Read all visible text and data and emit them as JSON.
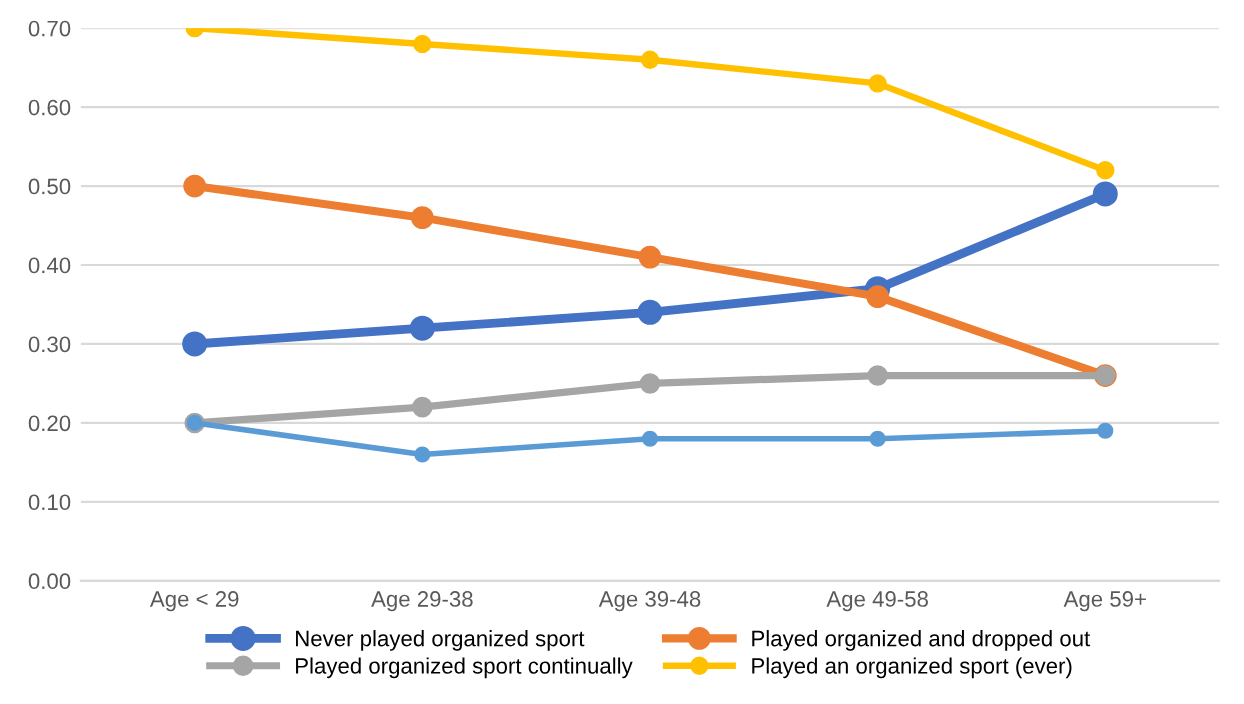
{
  "chart_data": {
    "type": "line",
    "categories": [
      "Age < 29",
      "Age 29-38",
      "Age 39-48",
      "Age 49-58",
      "Age 59+"
    ],
    "series": [
      {
        "name": "Never played organized sport",
        "color": "#4472c4",
        "values": [
          0.3,
          0.32,
          0.34,
          0.37,
          0.49
        ]
      },
      {
        "name": "Played organized and dropped out",
        "color": "#ed7d31",
        "values": [
          0.5,
          0.46,
          0.41,
          0.36,
          0.26
        ]
      },
      {
        "name": "Played organized sport continually",
        "color": "#a5a5a5",
        "values": [
          0.2,
          0.22,
          0.25,
          0.26,
          0.26
        ]
      },
      {
        "name": "Played an organized sport (ever)",
        "color": "#ffc000",
        "values": [
          0.7,
          0.68,
          0.66,
          0.63,
          0.52
        ]
      },
      {
        "color": "#5b9bd5",
        "values": [
          0.2,
          0.16,
          0.18,
          0.18,
          0.19
        ]
      }
    ],
    "ylim": [
      0,
      0.7
    ],
    "yticks": [
      {
        "value": 0,
        "label": "0.00"
      },
      {
        "value": 0.1,
        "label": "0.10"
      },
      {
        "value": 0.2,
        "label": "0.20"
      },
      {
        "value": 0.3,
        "label": "0.30"
      },
      {
        "value": 0.4,
        "label": "0.40"
      },
      {
        "value": 0.5,
        "label": "0.50"
      },
      {
        "value": 0.6,
        "label": "0.60"
      },
      {
        "value": 0.7,
        "label": "0.70"
      }
    ],
    "grid": "y",
    "legend": "bottom",
    "marker": "circle",
    "line_style": "solid"
  }
}
